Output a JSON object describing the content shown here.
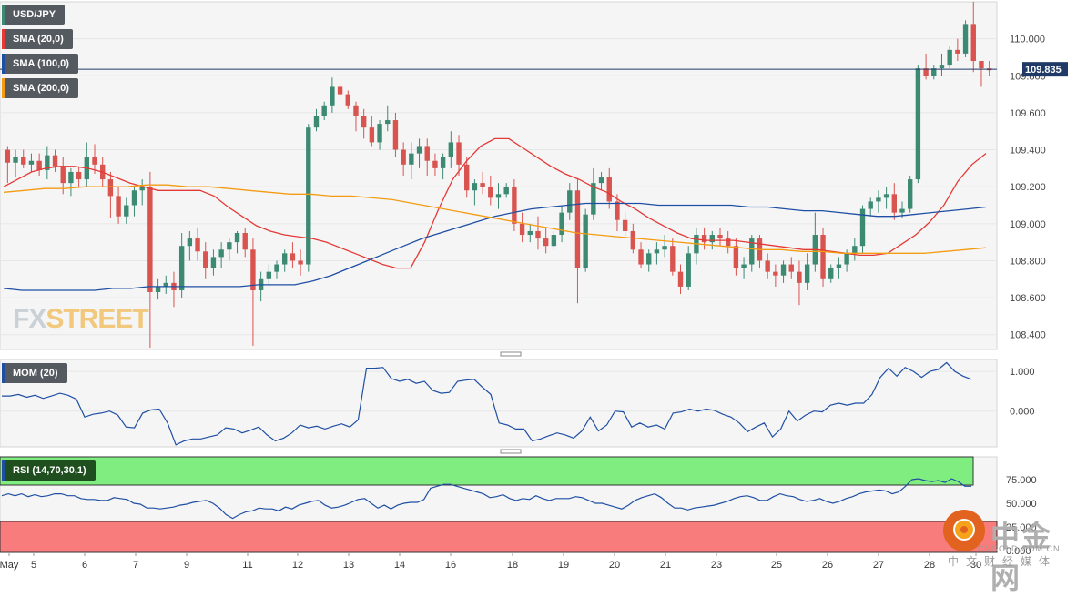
{
  "chart_data": {
    "type": "candlestick",
    "symbol": "USD/JPY",
    "last_price": "109.835",
    "price_axis": {
      "ticks": [
        "110.000",
        "109.800",
        "109.600",
        "109.400",
        "109.200",
        "109.000",
        "108.800",
        "108.600",
        "108.400"
      ],
      "ylim": [
        108.32,
        110.2
      ]
    },
    "x_axis_labels": [
      "May",
      "5",
      "6",
      "7",
      "9",
      "11",
      "12",
      "13",
      "14",
      "16",
      "18",
      "19",
      "20",
      "21",
      "23",
      "25",
      "26",
      "27",
      "28",
      "30"
    ],
    "candles": [
      [
        109.4,
        109.42,
        109.22,
        109.33
      ],
      [
        109.33,
        109.4,
        109.25,
        109.36
      ],
      [
        109.36,
        109.4,
        109.3,
        109.32
      ],
      [
        109.32,
        109.38,
        109.28,
        109.34
      ],
      [
        109.34,
        109.38,
        109.26,
        109.29
      ],
      [
        109.29,
        109.42,
        109.24,
        109.37
      ],
      [
        109.37,
        109.4,
        109.28,
        109.31
      ],
      [
        109.31,
        109.36,
        109.16,
        109.22
      ],
      [
        109.22,
        109.3,
        109.15,
        109.28
      ],
      [
        109.28,
        109.31,
        109.2,
        109.24
      ],
      [
        109.24,
        109.44,
        109.2,
        109.36
      ],
      [
        109.36,
        109.43,
        109.27,
        109.32
      ],
      [
        109.32,
        109.36,
        109.2,
        109.24
      ],
      [
        109.24,
        109.28,
        109.03,
        109.15
      ],
      [
        109.15,
        109.2,
        109.0,
        109.04
      ],
      [
        109.04,
        109.14,
        109.0,
        109.1
      ],
      [
        109.1,
        109.2,
        109.04,
        109.18
      ],
      [
        109.18,
        109.24,
        109.1,
        109.2
      ],
      [
        109.2,
        109.28,
        108.33,
        108.63
      ],
      [
        108.63,
        108.7,
        108.59,
        108.66
      ],
      [
        108.66,
        108.72,
        108.62,
        108.68
      ],
      [
        108.68,
        108.74,
        108.55,
        108.64
      ],
      [
        108.64,
        108.95,
        108.6,
        108.88
      ],
      [
        108.88,
        108.96,
        108.8,
        108.92
      ],
      [
        108.92,
        108.98,
        108.8,
        108.85
      ],
      [
        108.85,
        108.9,
        108.7,
        108.76
      ],
      [
        108.76,
        108.86,
        108.72,
        108.82
      ],
      [
        108.82,
        108.9,
        108.76,
        108.86
      ],
      [
        108.86,
        108.92,
        108.8,
        108.9
      ],
      [
        108.9,
        108.96,
        108.84,
        108.95
      ],
      [
        108.95,
        108.98,
        108.82,
        108.86
      ],
      [
        108.86,
        108.92,
        108.34,
        108.64
      ],
      [
        108.64,
        108.74,
        108.58,
        108.7
      ],
      [
        108.7,
        108.78,
        108.67,
        108.74
      ],
      [
        108.74,
        108.8,
        108.7,
        108.78
      ],
      [
        108.78,
        108.86,
        108.74,
        108.84
      ],
      [
        108.84,
        108.9,
        108.76,
        108.8
      ],
      [
        108.8,
        108.86,
        108.72,
        108.78
      ],
      [
        108.78,
        109.54,
        108.74,
        109.52
      ],
      [
        109.52,
        109.62,
        109.5,
        109.58
      ],
      [
        109.58,
        109.66,
        109.56,
        109.64
      ],
      [
        109.64,
        109.79,
        109.6,
        109.74
      ],
      [
        109.74,
        109.76,
        109.68,
        109.7
      ],
      [
        109.7,
        109.72,
        109.62,
        109.64
      ],
      [
        109.64,
        109.66,
        109.5,
        109.58
      ],
      [
        109.58,
        109.62,
        109.46,
        109.52
      ],
      [
        109.52,
        109.58,
        109.42,
        109.44
      ],
      [
        109.44,
        109.56,
        109.4,
        109.54
      ],
      [
        109.54,
        109.64,
        109.5,
        109.56
      ],
      [
        109.56,
        109.6,
        109.36,
        109.4
      ],
      [
        109.4,
        109.44,
        109.26,
        109.32
      ],
      [
        109.32,
        109.44,
        109.24,
        109.38
      ],
      [
        109.38,
        109.46,
        109.3,
        109.42
      ],
      [
        109.42,
        109.46,
        109.26,
        109.34
      ],
      [
        109.34,
        109.38,
        109.26,
        109.3
      ],
      [
        109.3,
        109.38,
        109.24,
        109.36
      ],
      [
        109.36,
        109.5,
        109.3,
        109.44
      ],
      [
        109.44,
        109.48,
        109.26,
        109.32
      ],
      [
        109.32,
        109.36,
        109.14,
        109.18
      ],
      [
        109.18,
        109.24,
        109.1,
        109.22
      ],
      [
        109.22,
        109.28,
        109.16,
        109.2
      ],
      [
        109.2,
        109.26,
        109.1,
        109.14
      ],
      [
        109.14,
        109.22,
        109.08,
        109.16
      ],
      [
        109.16,
        109.22,
        109.14,
        109.2
      ],
      [
        109.2,
        109.24,
        108.96,
        109.0
      ],
      [
        109.0,
        109.06,
        108.9,
        108.94
      ],
      [
        108.94,
        109.0,
        108.9,
        108.96
      ],
      [
        108.96,
        109.04,
        108.86,
        108.92
      ],
      [
        108.92,
        108.98,
        108.84,
        108.88
      ],
      [
        108.88,
        108.96,
        108.86,
        108.94
      ],
      [
        108.94,
        109.1,
        108.9,
        109.06
      ],
      [
        109.06,
        109.22,
        109.02,
        109.18
      ],
      [
        109.18,
        109.24,
        108.57,
        108.76
      ],
      [
        108.76,
        109.08,
        108.74,
        109.05
      ],
      [
        109.05,
        109.3,
        109.02,
        109.22
      ],
      [
        109.22,
        109.28,
        109.18,
        109.25
      ],
      [
        109.25,
        109.3,
        109.08,
        109.12
      ],
      [
        109.12,
        109.16,
        108.96,
        109.02
      ],
      [
        109.02,
        109.06,
        108.92,
        108.96
      ],
      [
        108.96,
        109.0,
        108.84,
        108.86
      ],
      [
        108.86,
        108.9,
        108.76,
        108.78
      ],
      [
        108.78,
        108.86,
        108.74,
        108.84
      ],
      [
        108.84,
        108.9,
        108.78,
        108.86
      ],
      [
        108.86,
        108.94,
        108.82,
        108.88
      ],
      [
        108.88,
        108.92,
        108.72,
        108.74
      ],
      [
        108.74,
        108.78,
        108.62,
        108.66
      ],
      [
        108.66,
        108.88,
        108.64,
        108.84
      ],
      [
        108.84,
        108.98,
        108.78,
        108.94
      ],
      [
        108.94,
        108.98,
        108.86,
        108.9
      ],
      [
        108.9,
        108.96,
        108.86,
        108.94
      ],
      [
        108.94,
        108.98,
        108.88,
        108.92
      ],
      [
        108.92,
        108.96,
        108.84,
        108.88
      ],
      [
        108.88,
        108.92,
        108.72,
        108.76
      ],
      [
        108.76,
        108.82,
        108.7,
        108.78
      ],
      [
        108.78,
        108.94,
        108.74,
        108.92
      ],
      [
        108.92,
        108.94,
        108.76,
        108.8
      ],
      [
        108.8,
        108.84,
        108.7,
        108.74
      ],
      [
        108.74,
        108.78,
        108.66,
        108.72
      ],
      [
        108.72,
        108.8,
        108.68,
        108.78
      ],
      [
        108.78,
        108.82,
        108.7,
        108.74
      ],
      [
        108.74,
        108.8,
        108.56,
        108.68
      ],
      [
        108.68,
        108.84,
        108.64,
        108.78
      ],
      [
        108.78,
        109.06,
        108.74,
        108.94
      ],
      [
        108.94,
        108.98,
        108.66,
        108.7
      ],
      [
        108.7,
        108.78,
        108.68,
        108.76
      ],
      [
        108.76,
        108.82,
        108.7,
        108.78
      ],
      [
        108.78,
        108.86,
        108.74,
        108.84
      ],
      [
        108.84,
        108.92,
        108.8,
        108.88
      ],
      [
        108.88,
        109.1,
        108.84,
        109.08
      ],
      [
        109.08,
        109.14,
        109.04,
        109.12
      ],
      [
        109.12,
        109.18,
        109.06,
        109.14
      ],
      [
        109.14,
        109.2,
        109.08,
        109.16
      ],
      [
        109.16,
        109.22,
        109.02,
        109.06
      ],
      [
        109.06,
        109.12,
        109.03,
        109.08
      ],
      [
        109.08,
        109.26,
        109.06,
        109.24
      ],
      [
        109.24,
        109.86,
        109.22,
        109.84
      ],
      [
        109.84,
        109.92,
        109.78,
        109.8
      ],
      [
        109.8,
        109.86,
        109.78,
        109.84
      ],
      [
        109.84,
        109.92,
        109.8,
        109.86
      ],
      [
        109.86,
        109.96,
        109.84,
        109.94
      ],
      [
        109.94,
        110.0,
        109.88,
        109.92
      ],
      [
        109.92,
        110.1,
        109.9,
        110.08
      ],
      [
        110.08,
        110.2,
        109.82,
        109.88
      ],
      [
        109.88,
        109.88,
        109.74,
        109.84
      ],
      [
        109.84,
        109.88,
        109.8,
        109.83
      ]
    ],
    "indicators": [
      {
        "name": "SMA (20,0)",
        "color": "#e53935",
        "values": [
          109.2,
          109.24,
          109.28,
          109.3,
          109.31,
          109.31,
          109.3,
          109.28,
          109.25,
          109.22,
          109.2,
          109.18,
          109.18,
          109.18,
          109.18,
          109.15,
          109.09,
          109.04,
          108.99,
          108.96,
          108.94,
          108.93,
          108.92,
          108.9,
          108.87,
          108.84,
          108.81,
          108.78,
          108.76,
          108.76,
          108.9,
          109.08,
          109.24,
          109.34,
          109.42,
          109.46,
          109.46,
          109.41,
          109.36,
          109.31,
          109.27,
          109.24,
          109.2,
          109.17,
          109.12,
          109.08,
          109.03,
          108.99,
          108.95,
          108.92,
          108.91,
          108.91,
          108.91,
          108.9,
          108.89,
          108.88,
          108.87,
          108.86,
          108.86,
          108.85,
          108.84,
          108.83,
          108.83,
          108.84,
          108.89,
          108.94,
          109.01,
          109.1,
          109.23,
          109.32,
          109.38
        ]
      },
      {
        "name": "SMA (100,0)",
        "color": "#1f4fa3",
        "values": [
          108.65,
          108.64,
          108.64,
          108.64,
          108.64,
          108.64,
          108.65,
          108.65,
          108.66,
          108.66,
          108.66,
          108.66,
          108.66,
          108.66,
          108.67,
          108.67,
          108.67,
          108.69,
          108.72,
          108.76,
          108.8,
          108.84,
          108.88,
          108.92,
          108.95,
          108.98,
          109.01,
          109.04,
          109.06,
          109.08,
          109.09,
          109.1,
          109.11,
          109.11,
          109.11,
          109.11,
          109.1,
          109.1,
          109.1,
          109.1,
          109.1,
          109.09,
          109.09,
          109.08,
          109.07,
          109.07,
          109.06,
          109.05,
          109.04,
          109.04,
          109.05,
          109.06,
          109.07,
          109.08,
          109.09
        ]
      },
      {
        "name": "SMA (200,0)",
        "color": "#f39c12",
        "values": [
          109.17,
          109.18,
          109.19,
          109.19,
          109.2,
          109.2,
          109.2,
          109.21,
          109.21,
          109.2,
          109.2,
          109.19,
          109.18,
          109.17,
          109.16,
          109.16,
          109.15,
          109.15,
          109.14,
          109.13,
          109.11,
          109.09,
          109.07,
          109.05,
          109.03,
          109.01,
          108.99,
          108.97,
          108.95,
          108.94,
          108.93,
          108.92,
          108.91,
          108.9,
          108.89,
          108.88,
          108.87,
          108.86,
          108.86,
          108.85,
          108.85,
          108.84,
          108.84,
          108.84,
          108.84,
          108.84,
          108.85,
          108.86,
          108.87
        ]
      }
    ],
    "momentum": {
      "name": "MOM (20)",
      "ticks": [
        "1.000",
        "0.000"
      ],
      "ylim": [
        -0.9,
        1.3
      ],
      "values": [
        0.38,
        0.38,
        0.42,
        0.35,
        0.4,
        0.32,
        0.38,
        0.45,
        0.4,
        0.3,
        -0.15,
        -0.08,
        -0.05,
        0.0,
        -0.1,
        -0.4,
        -0.42,
        -0.05,
        0.03,
        0.05,
        -0.3,
        -0.85,
        -0.75,
        -0.7,
        -0.7,
        -0.65,
        -0.6,
        -0.42,
        -0.45,
        -0.55,
        -0.48,
        -0.4,
        -0.6,
        -0.75,
        -0.68,
        -0.55,
        -0.35,
        -0.42,
        -0.38,
        -0.45,
        -0.38,
        -0.32,
        -0.4,
        -0.22,
        1.08,
        1.08,
        1.1,
        0.82,
        0.75,
        0.8,
        0.7,
        0.75,
        0.52,
        0.45,
        0.47,
        0.75,
        0.78,
        0.8,
        0.6,
        0.42,
        -0.3,
        -0.35,
        -0.45,
        -0.45,
        -0.75,
        -0.7,
        -0.62,
        -0.55,
        -0.6,
        -0.68,
        -0.5,
        -0.15,
        -0.5,
        -0.35,
        0.0,
        -0.02,
        -0.4,
        -0.3,
        -0.4,
        -0.35,
        -0.45,
        -0.05,
        -0.02,
        0.05,
        0.0,
        0.05,
        0.02,
        -0.08,
        -0.15,
        -0.3,
        -0.52,
        -0.4,
        -0.3,
        -0.65,
        -0.45,
        0.0,
        -0.25,
        -0.1,
        0.0,
        -0.02,
        0.15,
        0.2,
        0.15,
        0.2,
        0.2,
        0.42,
        0.85,
        1.08,
        0.88,
        1.1,
        1.0,
        0.85,
        1.0,
        1.05,
        1.22,
        1.0,
        0.88,
        0.8
      ]
    },
    "rsi": {
      "name": "RSI (14,70,30,1)",
      "ticks": [
        "75.000",
        "50.000",
        "25.000",
        "0.000"
      ],
      "ylim": [
        0,
        100
      ],
      "overbought": 70,
      "oversold": 30,
      "overbought_color": "#80ed80",
      "oversold_color": "#f87c7c",
      "values": [
        58,
        60,
        58,
        60,
        57,
        59,
        57,
        58,
        60,
        60,
        58,
        58,
        55,
        54,
        54,
        53,
        53,
        56,
        55,
        54,
        50,
        49,
        45,
        45,
        44,
        45,
        46,
        48,
        49,
        51,
        52,
        53,
        50,
        45,
        38,
        34,
        38,
        41,
        42,
        45,
        44,
        44,
        42,
        46,
        44,
        48,
        50,
        52,
        53,
        48,
        45,
        46,
        48,
        51,
        54,
        55,
        50,
        45,
        48,
        44,
        48,
        50,
        51,
        51,
        54,
        66,
        68,
        70,
        70,
        68,
        66,
        64,
        62,
        60,
        56,
        57,
        59,
        55,
        53,
        55,
        54,
        58,
        55,
        53,
        55,
        55,
        55,
        57,
        56,
        53,
        50,
        50,
        48,
        46,
        44,
        48,
        53,
        56,
        58,
        60,
        56,
        50,
        45,
        45,
        43,
        45,
        46,
        47,
        48,
        50,
        52,
        55,
        57,
        58,
        56,
        53,
        53,
        57,
        60,
        58,
        57,
        54,
        52,
        53,
        55,
        52,
        50,
        52,
        55,
        57,
        60,
        62,
        63,
        64,
        63,
        60,
        62,
        68,
        75,
        76,
        74,
        73,
        74,
        72,
        76,
        73,
        68,
        68
      ]
    },
    "price_series_label": "USD/JPY"
  },
  "legends": {
    "usdjpy": "USD/JPY",
    "sma20": "SMA (20,0)",
    "sma100": "SMA (100,0)",
    "sma200": "SMA (200,0)",
    "mom": "MOM (20)",
    "rsi": "RSI (14,70,30,1)"
  },
  "watermark": {
    "left": "FX",
    "right": "STREET"
  },
  "brand": {
    "cn_name": "中金网",
    "domain": "CNGOLD.COM.CN",
    "cn_sub": "中文财经媒体"
  },
  "colors": {
    "bull": "#3d8a73",
    "bear": "#d9534f",
    "grid": "#e6e6e6",
    "panel_bg": "#f5f5f6",
    "price_line": "#1f3a66"
  }
}
